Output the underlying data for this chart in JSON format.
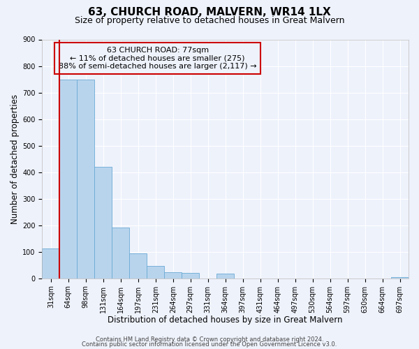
{
  "title": "63, CHURCH ROAD, MALVERN, WR14 1LX",
  "subtitle": "Size of property relative to detached houses in Great Malvern",
  "xlabel": "Distribution of detached houses by size in Great Malvern",
  "ylabel": "Number of detached properties",
  "bin_labels": [
    "31sqm",
    "64sqm",
    "98sqm",
    "131sqm",
    "164sqm",
    "197sqm",
    "231sqm",
    "264sqm",
    "297sqm",
    "331sqm",
    "364sqm",
    "397sqm",
    "431sqm",
    "464sqm",
    "497sqm",
    "530sqm",
    "564sqm",
    "597sqm",
    "630sqm",
    "664sqm",
    "697sqm"
  ],
  "bar_values": [
    113,
    748,
    750,
    420,
    190,
    95,
    47,
    22,
    20,
    0,
    18,
    0,
    0,
    0,
    0,
    0,
    0,
    0,
    0,
    0,
    5
  ],
  "bar_color": "#b8d4ed",
  "bar_edge_color": "#6aaad4",
  "vline_x": 1,
  "vline_color": "#cc0000",
  "annotation_text": "63 CHURCH ROAD: 77sqm\n← 11% of detached houses are smaller (275)\n88% of semi-detached houses are larger (2,117) →",
  "annotation_box_edge": "#cc0000",
  "ylim": [
    0,
    900
  ],
  "yticks": [
    0,
    100,
    200,
    300,
    400,
    500,
    600,
    700,
    800,
    900
  ],
  "footnote1": "Contains HM Land Registry data © Crown copyright and database right 2024.",
  "footnote2": "Contains public sector information licensed under the Open Government Licence v3.0.",
  "background_color": "#eef2fb",
  "grid_color": "#ffffff",
  "title_fontsize": 11,
  "subtitle_fontsize": 9,
  "tick_fontsize": 7,
  "label_fontsize": 8.5,
  "footnote_fontsize": 6,
  "ann_fontsize": 8
}
